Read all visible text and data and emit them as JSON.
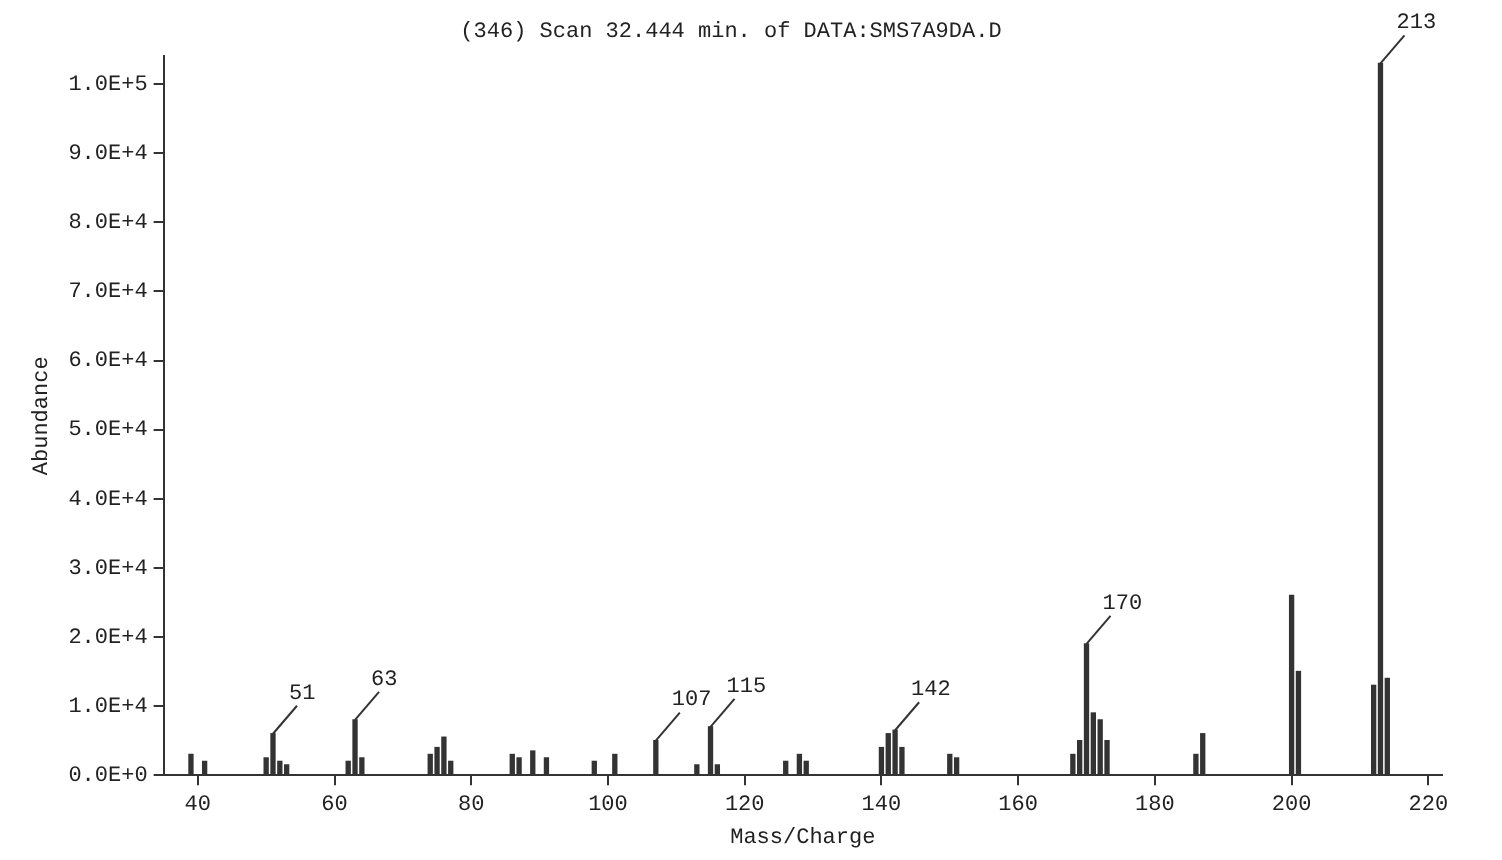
{
  "chart_data": {
    "type": "bar",
    "title": "(346) Scan 32.444 min. of DATA:SMS7A9DA.D",
    "xlabel": "Mass/Charge",
    "ylabel": "Abundance",
    "x": [
      39,
      41,
      50,
      51,
      52,
      53,
      62,
      63,
      64,
      74,
      75,
      76,
      77,
      86,
      87,
      89,
      91,
      98,
      101,
      107,
      113,
      115,
      116,
      126,
      128,
      129,
      140,
      141,
      142,
      143,
      150,
      151,
      168,
      169,
      170,
      171,
      172,
      173,
      186,
      187,
      200,
      201,
      212,
      213,
      214
    ],
    "values": [
      3000,
      2000,
      2500,
      6000,
      2000,
      1500,
      2000,
      8000,
      2500,
      3000,
      4000,
      5500,
      2000,
      3000,
      2500,
      3500,
      2500,
      2000,
      3000,
      5000,
      1500,
      7000,
      1500,
      2000,
      3000,
      2000,
      4000,
      6000,
      6500,
      4000,
      3000,
      2500,
      3000,
      5000,
      19000,
      9000,
      8000,
      5000,
      3000,
      6000,
      26000,
      15000,
      13000,
      103000,
      14000
    ],
    "color": "#333333",
    "xlim": [
      35,
      222
    ],
    "xticks": [
      40,
      60,
      80,
      100,
      120,
      140,
      160,
      180,
      200,
      220
    ],
    "ylim": [
      0,
      104000
    ],
    "yticks": [
      {
        "value": 0,
        "label": "0.0E+0"
      },
      {
        "value": 10000,
        "label": "1.0E+4"
      },
      {
        "value": 20000,
        "label": "2.0E+4"
      },
      {
        "value": 30000,
        "label": "3.0E+4"
      },
      {
        "value": 40000,
        "label": "4.0E+4"
      },
      {
        "value": 50000,
        "label": "5.0E+4"
      },
      {
        "value": 60000,
        "label": "6.0E+4"
      },
      {
        "value": 70000,
        "label": "7.0E+4"
      },
      {
        "value": 80000,
        "label": "8.0E+4"
      },
      {
        "value": 90000,
        "label": "9.0E+4"
      },
      {
        "value": 100000,
        "label": "1.0E+5"
      }
    ],
    "grid": false,
    "legend": false,
    "annotations": [
      {
        "text": "51",
        "x": 51,
        "y": 6000
      },
      {
        "text": "63",
        "x": 63,
        "y": 8000
      },
      {
        "text": "107",
        "x": 107,
        "y": 5000
      },
      {
        "text": "115",
        "x": 115,
        "y": 7000
      },
      {
        "text": "142",
        "x": 142,
        "y": 6500
      },
      {
        "text": "170",
        "x": 170,
        "y": 19000
      },
      {
        "text": "213",
        "x": 213,
        "y": 103000
      }
    ]
  }
}
